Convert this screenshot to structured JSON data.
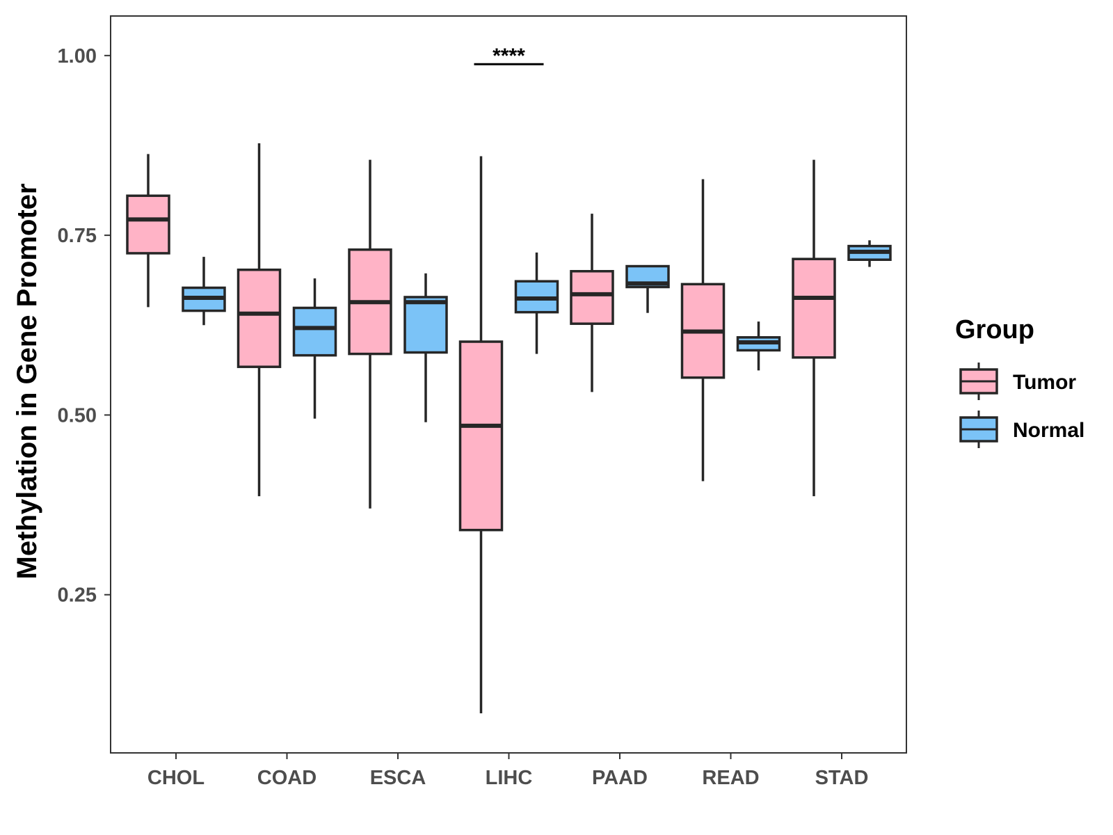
{
  "chart_data": {
    "type": "boxplot",
    "title": "",
    "xlabel": "",
    "ylabel": "Methylation in Gene Promoter",
    "ylim": [
      0.03,
      1.055
    ],
    "yticks": [
      0.25,
      0.5,
      0.75,
      1.0
    ],
    "ytick_labels": [
      "0.25",
      "0.50",
      "0.75",
      "1.00"
    ],
    "categories": [
      "CHOL",
      "COAD",
      "ESCA",
      "LIHC",
      "PAAD",
      "READ",
      "STAD"
    ],
    "legend": {
      "title": "Group",
      "position": "right",
      "entries": [
        {
          "name": "Tumor",
          "color": "#FFB3C6"
        },
        {
          "name": "Normal",
          "color": "#7BC3F7"
        }
      ]
    },
    "series": [
      {
        "name": "Tumor",
        "color": "#FFB3C6",
        "boxes": [
          {
            "category": "CHOL",
            "min": 0.65,
            "q1": 0.725,
            "median": 0.772,
            "q3": 0.805,
            "max": 0.863
          },
          {
            "category": "COAD",
            "min": 0.387,
            "q1": 0.567,
            "median": 0.641,
            "q3": 0.702,
            "max": 0.878
          },
          {
            "category": "ESCA",
            "min": 0.37,
            "q1": 0.585,
            "median": 0.657,
            "q3": 0.73,
            "max": 0.855
          },
          {
            "category": "LIHC",
            "min": 0.085,
            "q1": 0.34,
            "median": 0.485,
            "q3": 0.602,
            "max": 0.86
          },
          {
            "category": "PAAD",
            "min": 0.532,
            "q1": 0.627,
            "median": 0.668,
            "q3": 0.7,
            "max": 0.78
          },
          {
            "category": "READ",
            "min": 0.408,
            "q1": 0.552,
            "median": 0.616,
            "q3": 0.682,
            "max": 0.828
          },
          {
            "category": "STAD",
            "min": 0.387,
            "q1": 0.58,
            "median": 0.663,
            "q3": 0.717,
            "max": 0.855
          }
        ]
      },
      {
        "name": "Normal",
        "color": "#7BC3F7",
        "boxes": [
          {
            "category": "CHOL",
            "min": 0.625,
            "q1": 0.645,
            "median": 0.663,
            "q3": 0.677,
            "max": 0.72
          },
          {
            "category": "COAD",
            "min": 0.495,
            "q1": 0.583,
            "median": 0.621,
            "q3": 0.649,
            "max": 0.69
          },
          {
            "category": "ESCA",
            "min": 0.49,
            "q1": 0.587,
            "median": 0.657,
            "q3": 0.664,
            "max": 0.697
          },
          {
            "category": "LIHC",
            "min": 0.585,
            "q1": 0.643,
            "median": 0.662,
            "q3": 0.686,
            "max": 0.726
          },
          {
            "category": "PAAD",
            "min": 0.642,
            "q1": 0.678,
            "median": 0.683,
            "q3": 0.707,
            "max": 0.707
          },
          {
            "category": "READ",
            "min": 0.562,
            "q1": 0.59,
            "median": 0.601,
            "q3": 0.608,
            "max": 0.63
          },
          {
            "category": "STAD",
            "min": 0.706,
            "q1": 0.716,
            "median": 0.727,
            "q3": 0.735,
            "max": 0.743
          }
        ]
      }
    ],
    "annotations": [
      {
        "category": "LIHC",
        "text": "****",
        "y": 0.988
      }
    ]
  }
}
